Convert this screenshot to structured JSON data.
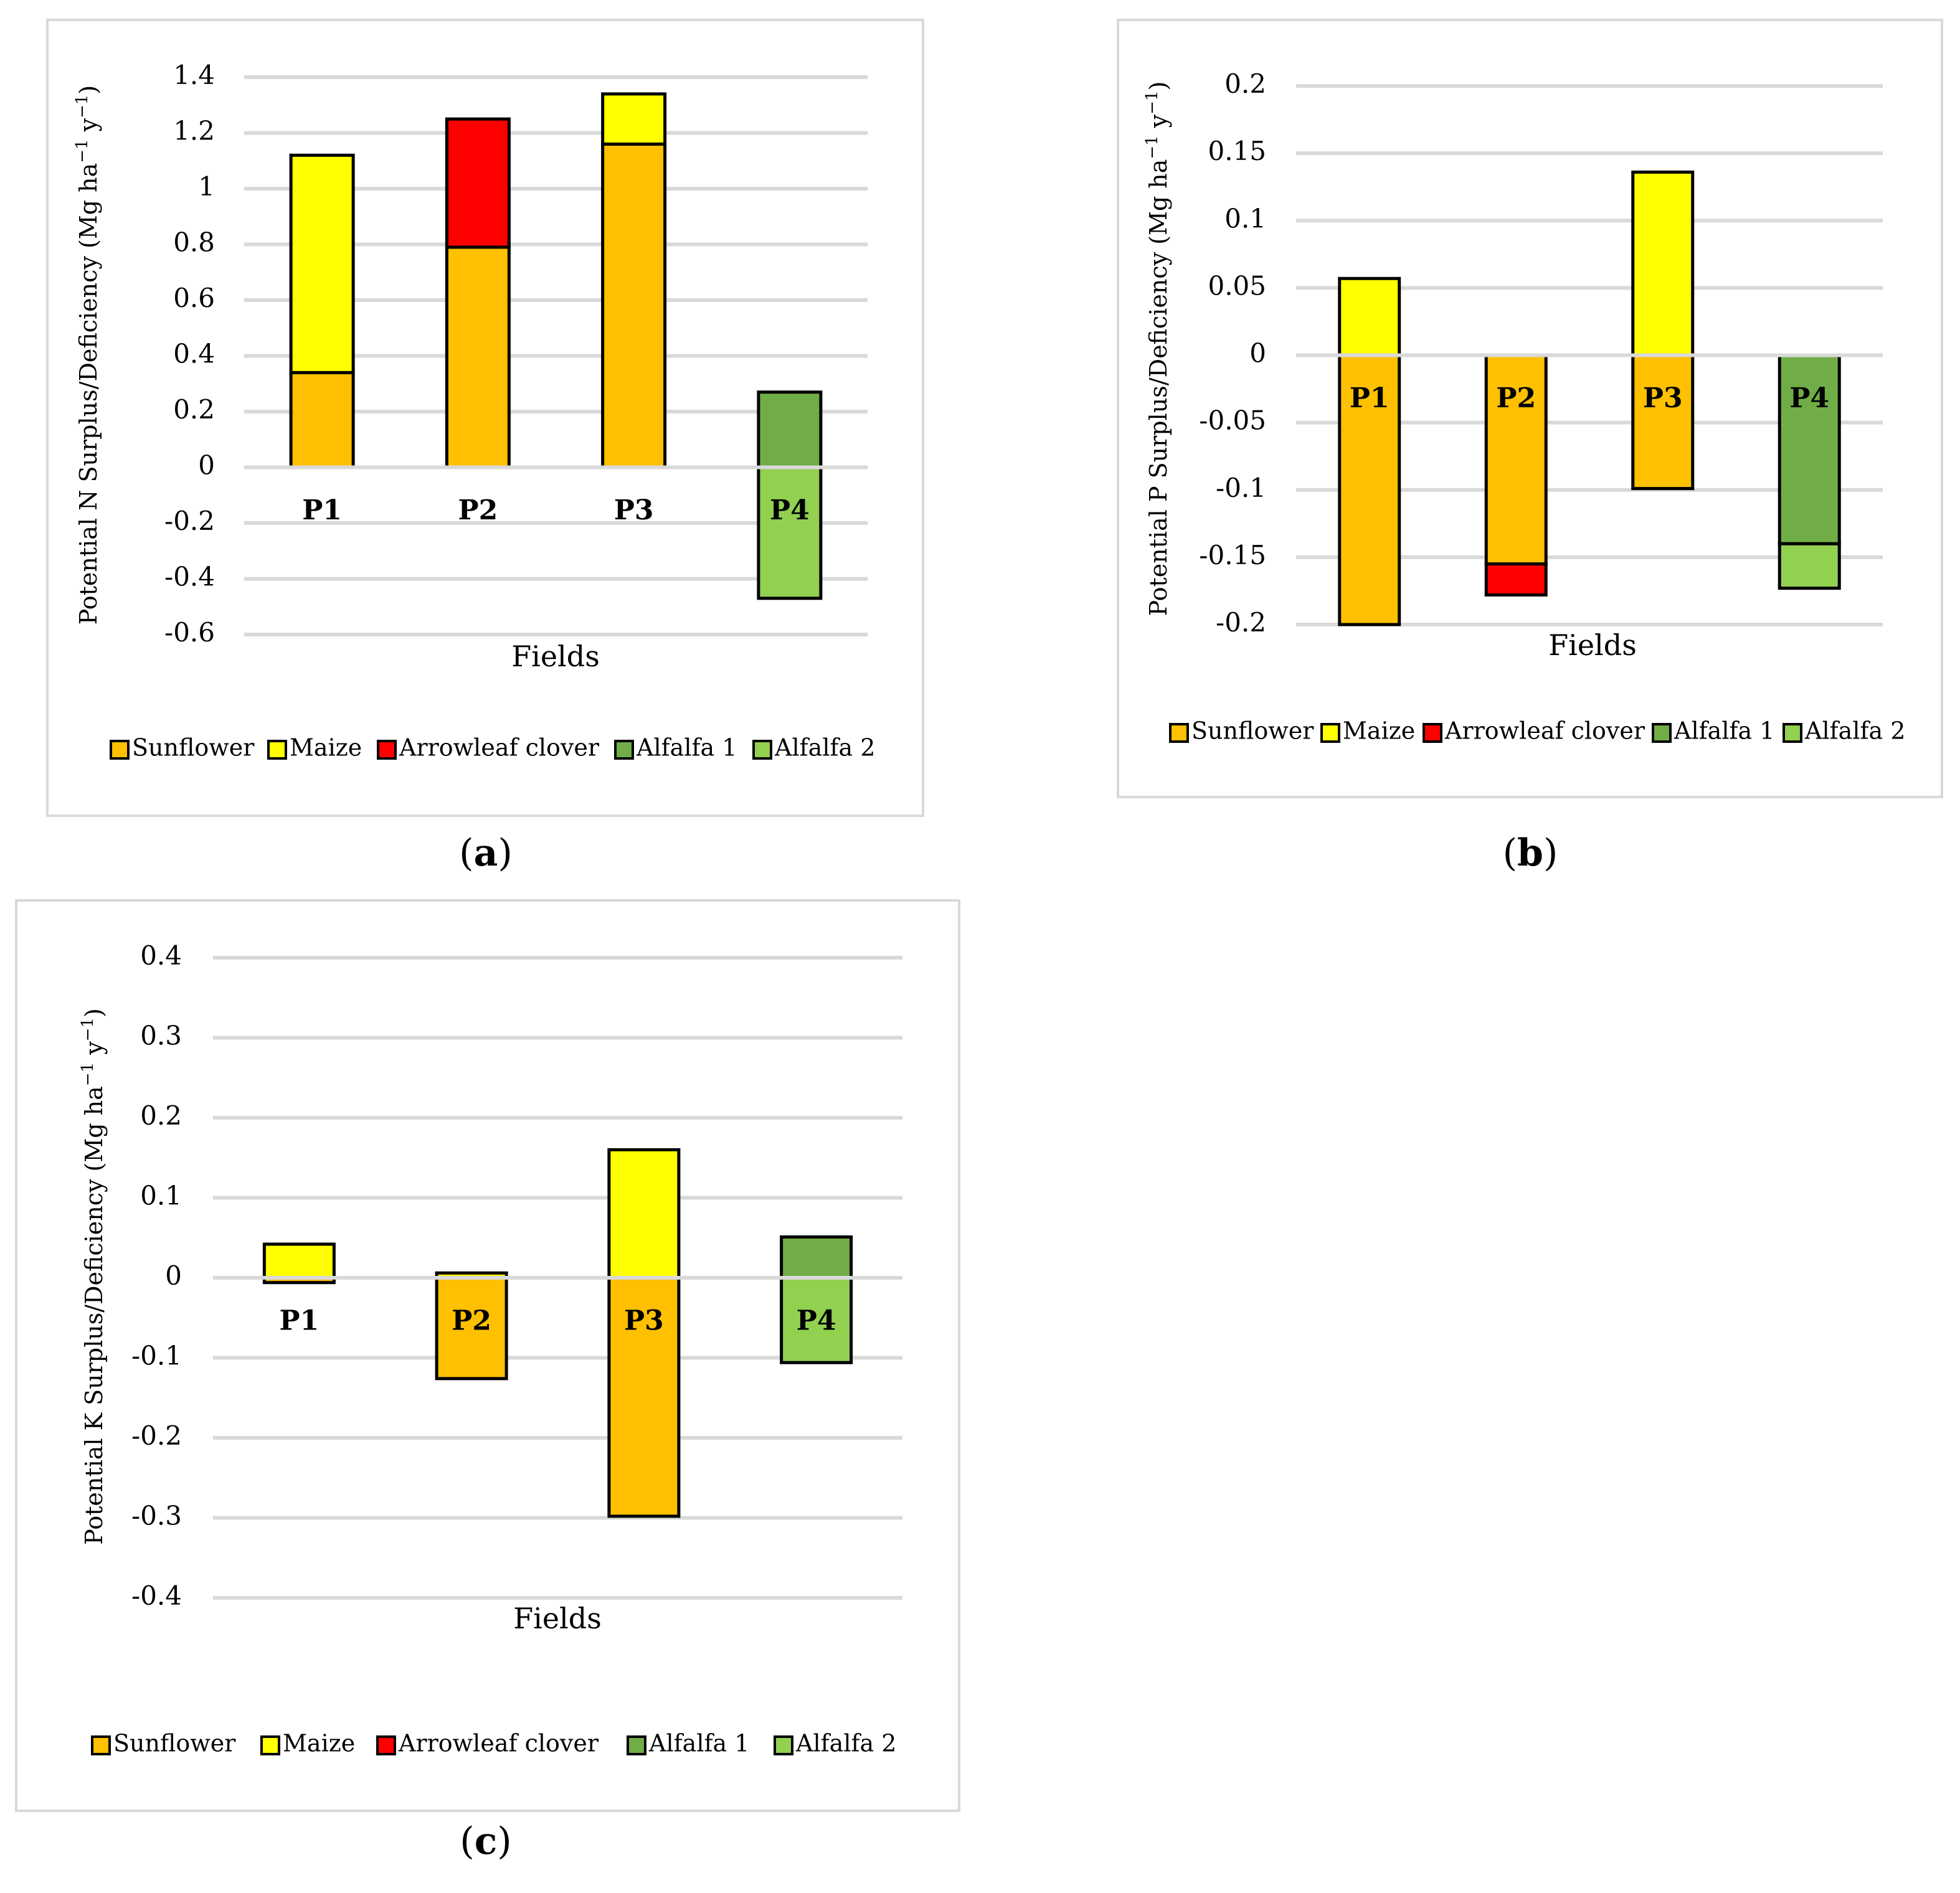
{
  "colors": {
    "Sunflower": "#ffc000",
    "Maize": "#ffff00",
    "Arrowleaf clover": "#ff0000",
    "Alfalfa 1": "#70ad47",
    "Alfalfa 2": "#92d050",
    "grid": "#d9d9d9"
  },
  "chart_data": [
    {
      "id": "a",
      "type": "bar",
      "stacked": true,
      "caption": "a",
      "xlabel": "Fields",
      "ylabel": "Potential N Surplus/Deficiency (Mg ha",
      "ylabel_sup1": "−1",
      "ylabel_mid": " y",
      "ylabel_sup2": "−1",
      "ylabel_end": ")",
      "ylim": [
        -0.6,
        1.4
      ],
      "ticks": [
        1.4,
        1.2,
        1,
        0.8,
        0.6,
        0.4,
        0.2,
        0,
        -0.2,
        -0.4,
        -0.6
      ],
      "tick_labels": [
        "1.4",
        "1.2",
        "1",
        "0.8",
        "0.6",
        "0.4",
        "0.2",
        "0",
        "-0.2",
        "-0.4",
        "-0.6"
      ],
      "categories": [
        "P1",
        "P2",
        "P3",
        "P4"
      ],
      "series": [
        {
          "name": "Sunflower",
          "values": [
            0.34,
            0.79,
            1.16,
            0
          ]
        },
        {
          "name": "Maize",
          "values": [
            0.78,
            0,
            0.18,
            0
          ]
        },
        {
          "name": "Arrowleaf clover",
          "values": [
            0,
            0.46,
            0,
            0
          ]
        },
        {
          "name": "Alfalfa 1",
          "values": [
            0,
            0,
            0,
            0.27
          ]
        },
        {
          "name": "Alfalfa 2",
          "values": [
            0,
            0,
            0,
            -0.47
          ]
        }
      ],
      "legend": [
        "Sunflower",
        "Maize",
        "Arrowleaf clover",
        "Alfalfa 1",
        "Alfalfa 2"
      ]
    },
    {
      "id": "b",
      "type": "bar",
      "stacked": true,
      "caption": "b",
      "xlabel": "Fields",
      "ylabel": "Potential P Surplus/Deficiency (Mg ha",
      "ylabel_sup1": "−1",
      "ylabel_mid": " y",
      "ylabel_sup2": "−1",
      "ylabel_end": ")",
      "ylim": [
        -0.2,
        0.2
      ],
      "ticks": [
        0.2,
        0.15,
        0.1,
        0.05,
        0,
        -0.05,
        -0.1,
        -0.15,
        -0.2
      ],
      "tick_labels": [
        "0.2",
        "0.15",
        "0.1",
        "0.05",
        "0",
        "-0.05",
        "-0.1",
        "-0.15",
        "-0.2"
      ],
      "categories": [
        "P1",
        "P2",
        "P3",
        "P4"
      ],
      "series": [
        {
          "name": "Sunflower",
          "values": [
            -0.2,
            -0.155,
            -0.099,
            0
          ]
        },
        {
          "name": "Maize",
          "values": [
            0.057,
            0,
            0.136,
            0
          ]
        },
        {
          "name": "Arrowleaf clover",
          "values": [
            0,
            -0.023,
            0,
            0
          ]
        },
        {
          "name": "Alfalfa 1",
          "values": [
            0,
            0,
            0,
            -0.14
          ]
        },
        {
          "name": "Alfalfa 2",
          "values": [
            0,
            0,
            0,
            -0.033
          ]
        }
      ],
      "legend": [
        "Sunflower",
        "Maize",
        "Arrowleaf clover",
        "Alfalfa 1",
        "Alfalfa 2"
      ]
    },
    {
      "id": "c",
      "type": "bar",
      "stacked": true,
      "caption": "c",
      "xlabel": "Fields",
      "ylabel": "Potential K Surplus/Deficiency (Mg ha",
      "ylabel_sup1": "−1",
      "ylabel_mid": " y",
      "ylabel_sup2": "−1",
      "ylabel_end": ")",
      "ylim": [
        -0.4,
        0.4
      ],
      "ticks": [
        0.4,
        0.3,
        0.2,
        0.1,
        0,
        -0.1,
        -0.2,
        -0.3,
        -0.4
      ],
      "tick_labels": [
        "0.4",
        "0.3",
        "0.2",
        "0.1",
        "0",
        "-0.1",
        "-0.2",
        "-0.3",
        "-0.4"
      ],
      "categories": [
        "P1",
        "P2",
        "P3",
        "P4"
      ],
      "series": [
        {
          "name": "Sunflower",
          "values": [
            -0.006,
            -0.126,
            -0.298,
            0
          ]
        },
        {
          "name": "Maize",
          "values": [
            0.042,
            0.006,
            0.16,
            0
          ]
        },
        {
          "name": "Arrowleaf clover",
          "values": [
            0,
            0,
            0,
            0
          ]
        },
        {
          "name": "Alfalfa 1",
          "values": [
            0,
            0,
            0,
            0.051
          ]
        },
        {
          "name": "Alfalfa 2",
          "values": [
            0,
            0,
            0,
            -0.106
          ]
        }
      ],
      "legend": [
        "Sunflower",
        "Maize",
        "Arrowleaf clover",
        "Alfalfa 1",
        "Alfalfa 2"
      ]
    }
  ]
}
